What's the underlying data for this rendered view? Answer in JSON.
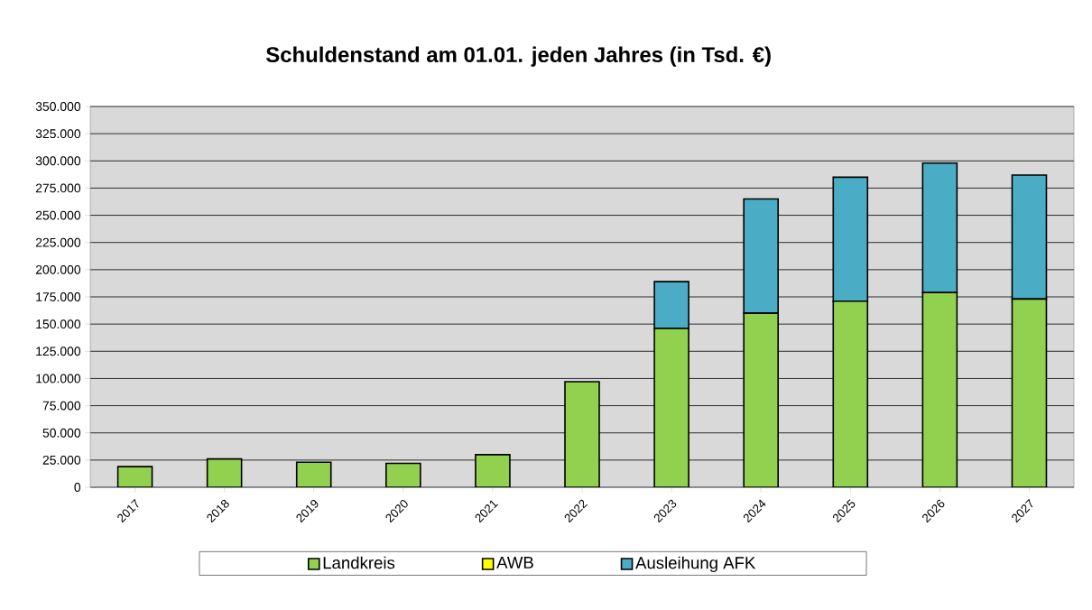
{
  "chart_data": {
    "type": "bar",
    "title": "Schuldenstand am 01.01. jeden Jahres (in Tsd. €)",
    "categories": [
      "2017",
      "2018",
      "2019",
      "2020",
      "2021",
      "2022",
      "2023",
      "2024",
      "2025",
      "2026",
      "2027"
    ],
    "stacked": true,
    "series": [
      {
        "name": "Landkreis",
        "color": "#92d050",
        "values": [
          19000,
          26000,
          23000,
          22000,
          30000,
          97000,
          146000,
          160000,
          171000,
          179000,
          173000
        ]
      },
      {
        "name": "AWB",
        "color": "#ffff00",
        "values": [
          0,
          0,
          null,
          0,
          0,
          0,
          0,
          0,
          0,
          0,
          0
        ]
      },
      {
        "name": "Ausleihung AFK",
        "color": "#4bacc6",
        "values": [
          0,
          0,
          0,
          0,
          0,
          0,
          43000,
          105000,
          114000,
          119000,
          114000
        ]
      }
    ],
    "ylim": [
      0,
      350000
    ],
    "yticks": [
      {
        "value": 0,
        "label": "0"
      },
      {
        "value": 25000,
        "label": "25.000"
      },
      {
        "value": 50000,
        "label": "50.000"
      },
      {
        "value": 75000,
        "label": "75.000"
      },
      {
        "value": 100000,
        "label": "100.000"
      },
      {
        "value": 125000,
        "label": "125.000"
      },
      {
        "value": 150000,
        "label": "150.000"
      },
      {
        "value": 175000,
        "label": "175.000"
      },
      {
        "value": 200000,
        "label": "200.000"
      },
      {
        "value": 225000,
        "label": "225.000"
      },
      {
        "value": 250000,
        "label": "250.000"
      },
      {
        "value": 275000,
        "label": "275.000"
      },
      {
        "value": 300000,
        "label": "300.000"
      },
      {
        "value": 325000,
        "label": "325.000"
      },
      {
        "value": 350000,
        "label": "350.000"
      }
    ],
    "grid": "y",
    "legend": "bottom"
  }
}
